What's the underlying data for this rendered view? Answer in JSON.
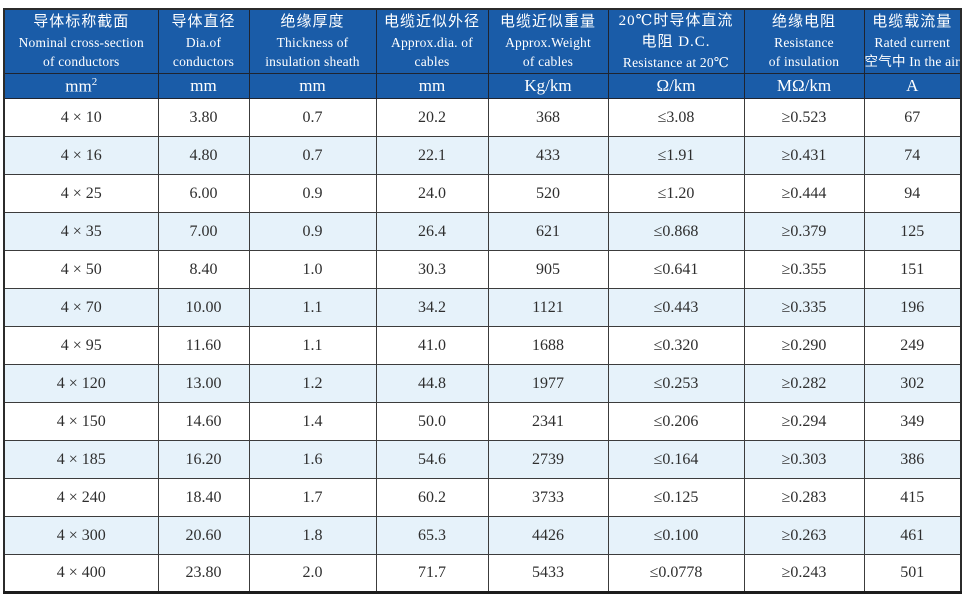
{
  "page": {
    "description": "Bilingual cable specification table for 4-core cables",
    "colors": {
      "header_bg": "#1a5ca8",
      "header_text": "#ffffff",
      "stripe_row_bg": "#e6f2fa",
      "body_text": "#2e2e2e",
      "border": "#3c3c3c"
    }
  },
  "table": {
    "columns": [
      {
        "unit": "mm²",
        "lines": [
          {
            "t": "导体标称截面",
            "zh": true
          },
          {
            "t": "Nominal cross-section",
            "zh": false
          },
          {
            "t": "of conductors",
            "zh": false
          }
        ]
      },
      {
        "unit": "mm",
        "lines": [
          {
            "t": "导体直径",
            "zh": true
          },
          {
            "t": "Dia.of",
            "zh": false
          },
          {
            "t": "conductors",
            "zh": false
          }
        ]
      },
      {
        "unit": "mm",
        "lines": [
          {
            "t": "绝缘厚度",
            "zh": true
          },
          {
            "t": "Thickness of",
            "zh": false
          },
          {
            "t": "insulation sheath",
            "zh": false
          }
        ]
      },
      {
        "unit": "mm",
        "lines": [
          {
            "t": "电缆近似外径",
            "zh": true
          },
          {
            "t": "Approx.dia. of",
            "zh": false
          },
          {
            "t": "cables",
            "zh": false
          }
        ]
      },
      {
        "unit": "Kg/km",
        "lines": [
          {
            "t": "电缆近似重量",
            "zh": true
          },
          {
            "t": "Approx.Weight",
            "zh": false
          },
          {
            "t": "of cables",
            "zh": false
          }
        ]
      },
      {
        "unit": "Ω/km",
        "lines": [
          {
            "t": "20℃时导体直流",
            "zh": true
          },
          {
            "t": "电阻 D.C.",
            "zh": true
          },
          {
            "t": "Resistance at 20℃",
            "zh": false
          }
        ]
      },
      {
        "unit": "MΩ/km",
        "lines": [
          {
            "t": "绝缘电阻",
            "zh": true
          },
          {
            "t": "Resistance",
            "zh": false
          },
          {
            "t": "of insulation",
            "zh": false
          }
        ]
      },
      {
        "unit": "A",
        "lines": [
          {
            "t": "电缆载流量",
            "zh": true
          },
          {
            "t": "Rated current",
            "zh": false
          },
          {
            "t": "空气中 In the air",
            "zh": false
          }
        ]
      }
    ],
    "rows": [
      [
        "4 × 10",
        "3.80",
        "0.7",
        "20.2",
        "368",
        "≤3.08",
        "≥0.523",
        "67"
      ],
      [
        "4 × 16",
        "4.80",
        "0.7",
        "22.1",
        "433",
        "≤1.91",
        "≥0.431",
        "74"
      ],
      [
        "4 × 25",
        "6.00",
        "0.9",
        "24.0",
        "520",
        "≤1.20",
        "≥0.444",
        "94"
      ],
      [
        "4 × 35",
        "7.00",
        "0.9",
        "26.4",
        "621",
        "≤0.868",
        "≥0.379",
        "125"
      ],
      [
        "4 × 50",
        "8.40",
        "1.0",
        "30.3",
        "905",
        "≤0.641",
        "≥0.355",
        "151"
      ],
      [
        "4 × 70",
        "10.00",
        "1.1",
        "34.2",
        "1121",
        "≤0.443",
        "≥0.335",
        "196"
      ],
      [
        "4 × 95",
        "11.60",
        "1.1",
        "41.0",
        "1688",
        "≤0.320",
        "≥0.290",
        "249"
      ],
      [
        "4 × 120",
        "13.00",
        "1.2",
        "44.8",
        "1977",
        "≤0.253",
        "≥0.282",
        "302"
      ],
      [
        "4 × 150",
        "14.60",
        "1.4",
        "50.0",
        "2341",
        "≤0.206",
        "≥0.294",
        "349"
      ],
      [
        "4 × 185",
        "16.20",
        "1.6",
        "54.6",
        "2739",
        "≤0.164",
        "≥0.303",
        "386"
      ],
      [
        "4 × 240",
        "18.40",
        "1.7",
        "60.2",
        "3733",
        "≤0.125",
        "≥0.283",
        "415"
      ],
      [
        "4 × 300",
        "20.60",
        "1.8",
        "65.3",
        "4426",
        "≤0.100",
        "≥0.263",
        "461"
      ],
      [
        "4 × 400",
        "23.80",
        "2.0",
        "71.7",
        "5433",
        "≤0.0778",
        "≥0.243",
        "501"
      ]
    ]
  }
}
